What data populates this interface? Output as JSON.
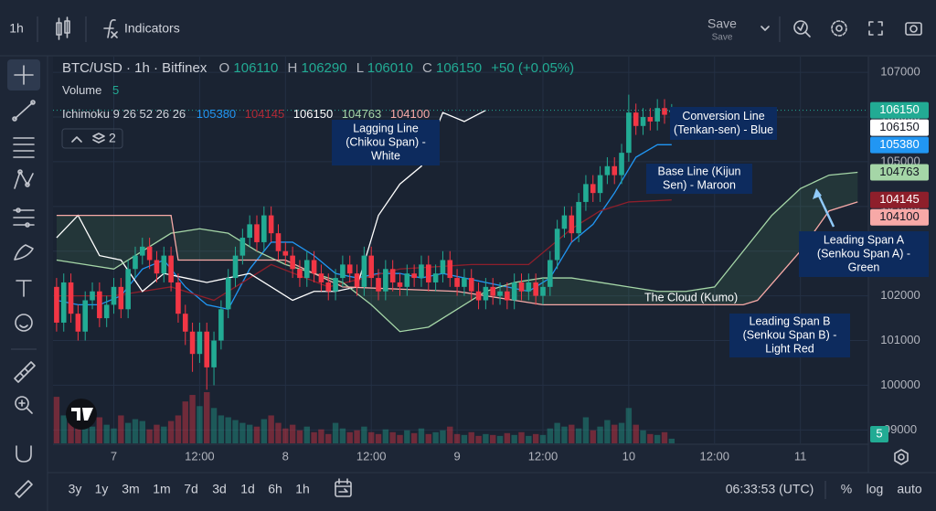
{
  "ui": {
    "interval": "1h",
    "indicators": "Indicators",
    "save": "Save",
    "save_sub": "Save",
    "ranges": [
      "3y",
      "1y",
      "3m",
      "1m",
      "7d",
      "3d",
      "1d",
      "6h",
      "1h"
    ],
    "clock": "06:33:53 (UTC)",
    "percent": "%",
    "log": "log",
    "auto": "auto"
  },
  "legend": {
    "symbol": "BTC/USD · 1h · Bitfinex",
    "ohlc_labels": [
      "O",
      "H",
      "L",
      "C"
    ],
    "change": "+50 (+0.05%)",
    "volume_label": "Volume",
    "ichimoku_label": "Ichimoku 9 26 52 26 26",
    "layers": "2"
  },
  "annotations": [
    {
      "lines": [
        "Lagging Line",
        "(Chikou Span) -",
        "White"
      ]
    },
    {
      "lines": [
        "Conversion Line",
        "(Tenkan-sen) - Blue"
      ]
    },
    {
      "lines": [
        "Base Line (Kijun",
        "Sen) - Maroon"
      ]
    },
    {
      "lines": [
        "Leading Span A",
        "(Senkou Span A) -",
        "Green"
      ]
    },
    {
      "lines": [
        "The Cloud (Kumo)"
      ]
    },
    {
      "lines": [
        "Leading Span B",
        "(Senkou Span B) -",
        "Light Red"
      ]
    }
  ],
  "chart_data": {
    "type": "candlestick",
    "up_color": "#22ab94",
    "down_color": "#f23645",
    "grid": true,
    "xlim": [
      -0.5,
      113.5
    ],
    "xticks": [
      {
        "value": 8,
        "label": "7"
      },
      {
        "value": 20,
        "label": "12:00"
      },
      {
        "value": 32,
        "label": "8"
      },
      {
        "value": 44,
        "label": "12:00"
      },
      {
        "value": 56,
        "label": "9"
      },
      {
        "value": 68,
        "label": "12:00"
      },
      {
        "value": 80,
        "label": "10"
      },
      {
        "value": 92,
        "label": "12:00"
      },
      {
        "value": 104,
        "label": "11"
      }
    ],
    "ylim": [
      98700,
      107350
    ],
    "yticks": [
      107000,
      106000,
      105000,
      104000,
      103000,
      102000,
      101000,
      100000,
      99000
    ],
    "x": [
      0,
      1,
      2,
      3,
      4,
      5,
      6,
      7,
      8,
      9,
      10,
      11,
      12,
      13,
      14,
      15,
      16,
      17,
      18,
      19,
      20,
      21,
      22,
      23,
      24,
      25,
      26,
      27,
      28,
      29,
      30,
      31,
      32,
      33,
      34,
      35,
      36,
      37,
      38,
      39,
      40,
      41,
      42,
      43,
      44,
      45,
      46,
      47,
      48,
      49,
      50,
      51,
      52,
      53,
      54,
      55,
      56,
      57,
      58,
      59,
      60,
      61,
      62,
      63,
      64,
      65,
      66,
      67,
      68,
      69,
      70,
      71,
      72,
      73,
      74,
      75,
      76,
      77,
      78,
      79,
      80,
      81,
      82,
      83,
      84,
      85,
      86
    ],
    "open": [
      102200,
      101400,
      102300,
      101600,
      101200,
      101900,
      102100,
      101500,
      101800,
      102200,
      101700,
      102600,
      102900,
      103100,
      102800,
      102500,
      102900,
      102300,
      101600,
      101200,
      100700,
      101200,
      100400,
      101000,
      101700,
      102400,
      102900,
      103300,
      103600,
      103200,
      103800,
      103400,
      103000,
      102900,
      102600,
      102400,
      102800,
      102500,
      102300,
      102100,
      102400,
      102700,
      102500,
      102200,
      102900,
      102400,
      102100,
      102600,
      102300,
      102200,
      102500,
      102400,
      102700,
      102300,
      102500,
      102800,
      102400,
      102200,
      102400,
      102100,
      101900,
      102200,
      102000,
      102100,
      101900,
      102300,
      102100,
      102300,
      102000,
      102200,
      102800,
      103500,
      103800,
      103400,
      104100,
      104500,
      104300,
      104700,
      104900,
      104700,
      105200,
      106100,
      105800,
      106000,
      105900,
      106200,
      106110
    ],
    "high": [
      102400,
      102500,
      102500,
      101800,
      102100,
      102300,
      102300,
      102000,
      102400,
      102400,
      102800,
      103100,
      103300,
      103300,
      103000,
      103100,
      103100,
      102500,
      101800,
      101400,
      101400,
      101400,
      101200,
      101900,
      102600,
      103100,
      103500,
      103800,
      103800,
      104000,
      104000,
      103600,
      103200,
      103100,
      102800,
      103000,
      103000,
      102700,
      102500,
      102600,
      102900,
      102900,
      102700,
      103100,
      103100,
      102600,
      102800,
      102800,
      102500,
      102700,
      102700,
      102900,
      102900,
      102700,
      103000,
      103000,
      102600,
      102600,
      102600,
      102300,
      102400,
      102400,
      102300,
      102300,
      102500,
      102500,
      102500,
      102500,
      102400,
      103000,
      103700,
      104000,
      104000,
      104300,
      104700,
      104700,
      104900,
      105100,
      105100,
      105400,
      106500,
      106300,
      106200,
      106200,
      106400,
      106400,
      106290
    ],
    "low": [
      101200,
      101200,
      101400,
      101000,
      101000,
      101700,
      101300,
      101300,
      101600,
      101500,
      101500,
      102400,
      102700,
      102600,
      102300,
      102300,
      102100,
      101400,
      100900,
      100300,
      100500,
      99900,
      100000,
      100800,
      101500,
      102200,
      102700,
      103100,
      103000,
      103000,
      103200,
      102800,
      102700,
      102400,
      102200,
      102200,
      102300,
      102100,
      101900,
      101900,
      102200,
      102300,
      102000,
      102000,
      102200,
      101900,
      101900,
      102100,
      102000,
      102000,
      102200,
      102200,
      102100,
      102100,
      102300,
      102200,
      102000,
      102000,
      101900,
      101700,
      101700,
      101800,
      101800,
      101700,
      101700,
      101900,
      101900,
      101800,
      101800,
      102000,
      102600,
      103300,
      103200,
      103200,
      103900,
      104100,
      104100,
      104500,
      104500,
      104500,
      105000,
      105600,
      105600,
      105700,
      105700,
      105850,
      106010
    ],
    "close": [
      101400,
      102300,
      101600,
      101200,
      101900,
      102100,
      101500,
      101800,
      102200,
      101700,
      102600,
      102900,
      103100,
      102800,
      102500,
      102900,
      102300,
      101600,
      101200,
      100700,
      101200,
      100400,
      101000,
      101700,
      102400,
      102900,
      103300,
      103600,
      103200,
      103800,
      103400,
      103000,
      102900,
      102600,
      102400,
      102800,
      102500,
      102300,
      102100,
      102400,
      102700,
      102500,
      102200,
      102900,
      102400,
      102100,
      102600,
      102300,
      102200,
      102500,
      102400,
      102700,
      102300,
      102500,
      102800,
      102400,
      102200,
      102400,
      102100,
      101900,
      102200,
      102000,
      102100,
      101900,
      102300,
      102100,
      102300,
      102000,
      102200,
      102800,
      103500,
      103800,
      103400,
      104100,
      104500,
      104300,
      104700,
      104900,
      104700,
      105200,
      106100,
      105800,
      106000,
      105900,
      106200,
      106050,
      106150
    ],
    "volume": [
      50,
      30,
      22,
      35,
      25,
      18,
      28,
      20,
      16,
      30,
      22,
      26,
      24,
      15,
      20,
      18,
      24,
      30,
      45,
      52,
      40,
      55,
      38,
      30,
      28,
      25,
      22,
      20,
      18,
      26,
      30,
      22,
      16,
      20,
      14,
      18,
      12,
      15,
      10,
      22,
      16,
      12,
      14,
      18,
      12,
      10,
      15,
      12,
      9,
      14,
      11,
      16,
      10,
      12,
      14,
      18,
      10,
      9,
      12,
      8,
      10,
      9,
      8,
      11,
      9,
      12,
      8,
      10,
      9,
      16,
      22,
      18,
      20,
      16,
      28,
      14,
      18,
      25,
      20,
      22,
      38,
      20,
      14,
      10,
      9,
      12,
      5
    ],
    "series": [
      {
        "color": "#2196f3",
        "x": [
          0,
          3,
          6,
          9,
          12,
          15,
          18,
          21,
          24,
          27,
          30,
          33,
          36,
          39,
          42,
          45,
          48,
          51,
          54,
          57,
          60,
          63,
          66,
          69,
          72,
          75,
          78,
          81,
          84,
          86
        ],
        "values": [
          101900,
          101800,
          101800,
          102000,
          102600,
          102800,
          102200,
          101800,
          101700,
          102600,
          103200,
          103200,
          102900,
          102500,
          102400,
          102500,
          102500,
          102400,
          102500,
          102400,
          102300,
          102200,
          102100,
          102400,
          103200,
          103600,
          104300,
          105100,
          105380,
          105380
        ]
      },
      {
        "color": "#8e1f2b",
        "x": [
          0,
          8,
          16,
          22,
          30,
          38,
          48,
          58,
          66,
          72,
          76,
          80,
          86
        ],
        "values": [
          102000,
          102000,
          102200,
          101900,
          102700,
          102200,
          102600,
          102700,
          102700,
          103500,
          103900,
          104100,
          104145
        ]
      },
      {
        "color": "#ffffff",
        "x": [
          0,
          3,
          6,
          9,
          12,
          15,
          18,
          21,
          24,
          27,
          30,
          33,
          36,
          39,
          42,
          45,
          48,
          51,
          54,
          57,
          60
        ],
        "values": [
          103300,
          103800,
          102900,
          102800,
          102100,
          102500,
          102400,
          102300,
          102400,
          102500,
          102200,
          101900,
          102100,
          102100,
          102200,
          103800,
          104500,
          104900,
          106100,
          105900,
          106150
        ]
      },
      {
        "color": "#a5d6a7",
        "x": [
          0,
          4,
          8,
          12,
          16,
          20,
          24,
          28,
          32,
          36,
          40,
          44,
          48,
          52,
          56,
          60,
          64,
          68,
          72,
          76,
          80,
          84,
          88,
          92,
          96,
          100,
          104,
          108,
          112
        ],
        "values": [
          102800,
          102700,
          102600,
          103000,
          103400,
          103500,
          103400,
          103000,
          102700,
          102500,
          102300,
          101800,
          101200,
          101300,
          101700,
          102100,
          102300,
          102400,
          102400,
          102300,
          102200,
          102100,
          102100,
          102200,
          103000,
          103800,
          104400,
          104700,
          104763
        ]
      },
      {
        "color": "#f7a9a7",
        "x": [
          0,
          16,
          17,
          32,
          40,
          56,
          64,
          68,
          72,
          80,
          88,
          96,
          98,
          104,
          108,
          112
        ],
        "values": [
          103800,
          103800,
          102800,
          102800,
          102200,
          102100,
          101900,
          101800,
          101800,
          101800,
          101800,
          101800,
          101900,
          103000,
          103900,
          104100
        ]
      }
    ]
  }
}
